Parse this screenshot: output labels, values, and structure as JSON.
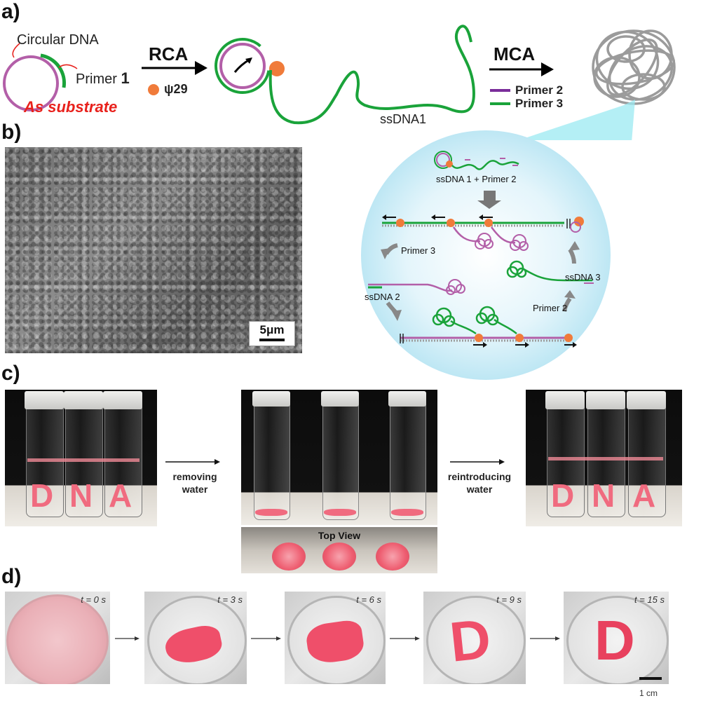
{
  "panels": {
    "a": "a)",
    "b": "b)",
    "c": "c)",
    "d": "d)"
  },
  "panel_a": {
    "circular_dna": "Circular DNA",
    "primer1": "Primer ",
    "primer1_num": "1",
    "as_substrate": "As substrate",
    "rca": "RCA",
    "phi29": "ψ29",
    "ssdna1": "ssDNA1",
    "mca": "MCA",
    "primer2": "Primer 2",
    "primer3": "Primer 3",
    "colors": {
      "purple": "#b35fa8",
      "green": "#1aa33a",
      "red": "#e8211c"
    }
  },
  "panel_b": {
    "scale_bar": "5μm",
    "ssdna1_primer2": "ssDNA 1 + Primer 2",
    "primer3": "Primer 3",
    "ssdna2": "ssDNA 2",
    "ssdna3": "ssDNA 3",
    "primer2": "Primer 2"
  },
  "panel_c": {
    "removing": "removing",
    "water1": "water",
    "reintroducing": "reintroducing",
    "water2": "water",
    "top_view": "Top View",
    "dna_letters": [
      "D",
      "N",
      "A"
    ]
  },
  "panel_d": {
    "times": [
      "t = 0 s",
      "t = 3 s",
      "t = 6 s",
      "t = 9 s",
      "t = 15 s"
    ],
    "scale": "1 cm",
    "letter": "D"
  }
}
